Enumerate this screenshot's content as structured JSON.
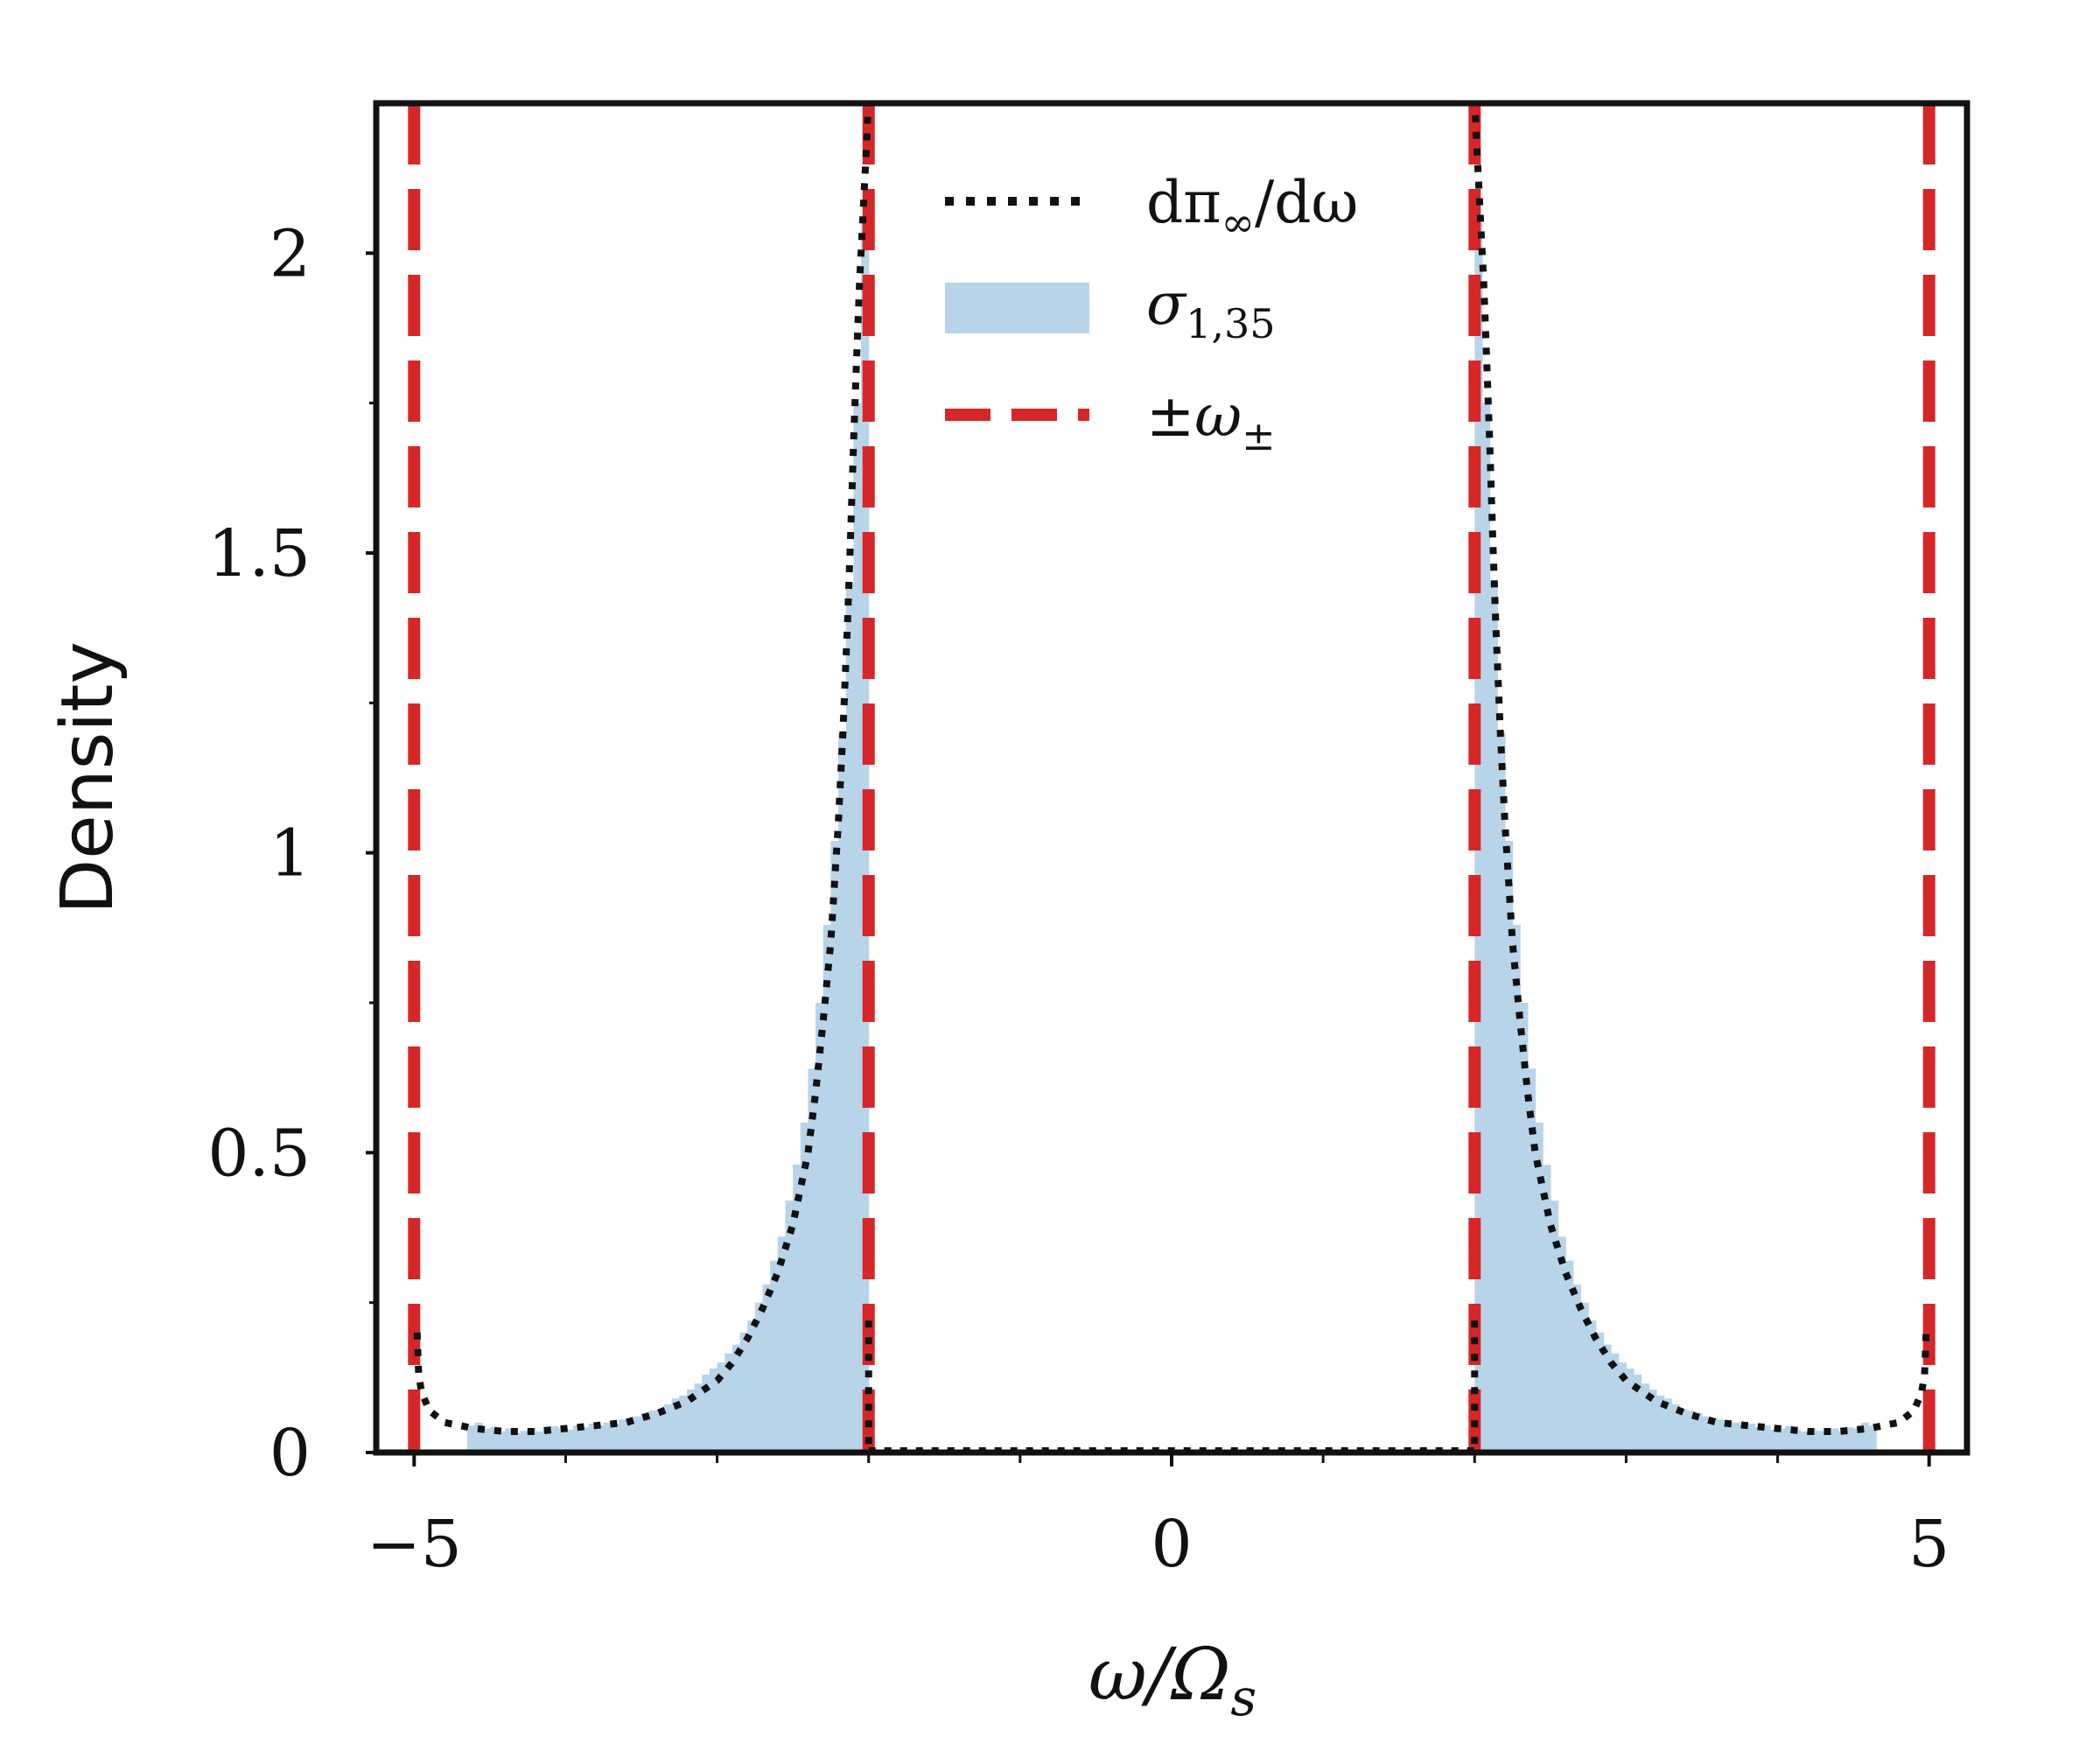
{
  "chart_data": {
    "type": "histogram-with-lines",
    "xlabel": "ω/Ω_s",
    "xlabel_main": "ω/Ω",
    "xlabel_sub": "s",
    "ylabel": "Density",
    "xlim": [
      -5.25,
      5.25
    ],
    "ylim": [
      0,
      2.25
    ],
    "xticks": [
      -5,
      0,
      5
    ],
    "xtick_labels": [
      "−5",
      "0",
      "5"
    ],
    "x_minor_ticks": [
      -4,
      -3,
      -2,
      -1,
      1,
      2,
      3,
      4
    ],
    "yticks": [
      0,
      0.5,
      1,
      1.5,
      2
    ],
    "ytick_labels": [
      "0",
      "0.5",
      "1",
      "1.5",
      "2"
    ],
    "y_minor_ticks": [
      0.25,
      0.75,
      1.25,
      1.75
    ],
    "omega_minus": 2.0,
    "omega_plus": 5.0,
    "colors": {
      "histogram": "#b8d4e9",
      "theory": "#111111",
      "vlines": "#d62728",
      "frame": "#111111"
    },
    "legend": {
      "placement": "top-center",
      "entries": [
        {
          "key": "theory",
          "label": "dπ∞/dω",
          "main": "dπ",
          "sub": "∞",
          "tail": "/dω",
          "style": "dotted"
        },
        {
          "key": "hist",
          "label": "σ1,35",
          "main": "σ",
          "sub": "1,35",
          "tail": "",
          "style": "fill"
        },
        {
          "key": "vlines",
          "label": "±ω±",
          "main": "±ω",
          "sub": "±",
          "tail": "",
          "style": "dashed"
        }
      ]
    },
    "vlines": [
      -5.0,
      -2.0,
      2.0,
      5.0
    ],
    "theory_curve": {
      "negative_x": [
        -4.98,
        -4.97,
        -4.95,
        -4.9,
        -4.8,
        -4.6,
        -4.4,
        -4.2,
        -4.0,
        -3.8,
        -3.6,
        -3.4,
        -3.2,
        -3.0,
        -2.9,
        -2.8,
        -2.7,
        -2.6,
        -2.5,
        -2.45,
        -2.4,
        -2.35,
        -2.3,
        -2.25,
        -2.2,
        -2.17,
        -2.14,
        -2.12,
        -2.1,
        -2.08,
        -2.06,
        -2.04,
        -2.03,
        -2.02,
        -2.01,
        -2.005
      ],
      "negative_y": [
        0.2,
        0.13,
        0.1,
        0.07,
        0.05,
        0.04,
        0.035,
        0.035,
        0.04,
        0.045,
        0.05,
        0.065,
        0.085,
        0.12,
        0.15,
        0.19,
        0.24,
        0.3,
        0.38,
        0.44,
        0.5,
        0.6,
        0.72,
        0.85,
        1.05,
        1.2,
        1.38,
        1.52,
        1.68,
        1.82,
        1.95,
        2.05,
        2.1,
        2.15,
        2.2,
        2.23
      ],
      "positive_x": [
        2.005,
        2.01,
        2.02,
        2.03,
        2.04,
        2.06,
        2.08,
        2.1,
        2.12,
        2.14,
        2.17,
        2.2,
        2.25,
        2.3,
        2.35,
        2.4,
        2.45,
        2.5,
        2.6,
        2.7,
        2.8,
        2.9,
        3.0,
        3.2,
        3.4,
        3.6,
        3.8,
        4.0,
        4.2,
        4.4,
        4.6,
        4.8,
        4.9,
        4.95,
        4.97,
        4.98
      ],
      "positive_y": [
        2.23,
        2.2,
        2.15,
        2.1,
        2.05,
        1.95,
        1.82,
        1.68,
        1.52,
        1.38,
        1.2,
        1.05,
        0.85,
        0.72,
        0.6,
        0.5,
        0.44,
        0.38,
        0.3,
        0.24,
        0.19,
        0.15,
        0.12,
        0.085,
        0.065,
        0.05,
        0.045,
        0.04,
        0.035,
        0.035,
        0.04,
        0.05,
        0.07,
        0.1,
        0.13,
        0.2
      ]
    },
    "histogram": {
      "bin_width": 0.05,
      "left_centers": [
        -4.625,
        -4.575,
        -4.525,
        -4.475,
        -4.425,
        -4.375,
        -4.325,
        -4.275,
        -4.225,
        -4.175,
        -4.125,
        -4.075,
        -4.025,
        -3.975,
        -3.925,
        -3.875,
        -3.825,
        -3.775,
        -3.725,
        -3.675,
        -3.625,
        -3.575,
        -3.525,
        -3.475,
        -3.425,
        -3.375,
        -3.325,
        -3.275,
        -3.225,
        -3.175,
        -3.125,
        -3.075,
        -3.025,
        -2.975,
        -2.925,
        -2.875,
        -2.825,
        -2.775,
        -2.725,
        -2.675,
        -2.625,
        -2.575,
        -2.525,
        -2.475,
        -2.425,
        -2.375,
        -2.325,
        -2.275,
        -2.225,
        -2.175,
        -2.125,
        -2.075,
        -2.025
      ],
      "left_values": [
        0.045,
        0.05,
        0.04,
        0.042,
        0.035,
        0.04,
        0.033,
        0.036,
        0.04,
        0.035,
        0.038,
        0.044,
        0.04,
        0.038,
        0.045,
        0.042,
        0.048,
        0.046,
        0.05,
        0.048,
        0.055,
        0.058,
        0.06,
        0.066,
        0.07,
        0.072,
        0.08,
        0.09,
        0.095,
        0.105,
        0.115,
        0.13,
        0.14,
        0.15,
        0.165,
        0.18,
        0.2,
        0.22,
        0.25,
        0.28,
        0.32,
        0.36,
        0.42,
        0.48,
        0.55,
        0.64,
        0.75,
        0.88,
        1.02,
        1.2,
        1.45,
        1.75,
        2.05
      ],
      "right_centers": [
        2.025,
        2.075,
        2.125,
        2.175,
        2.225,
        2.275,
        2.325,
        2.375,
        2.425,
        2.475,
        2.525,
        2.575,
        2.625,
        2.675,
        2.725,
        2.775,
        2.825,
        2.875,
        2.925,
        2.975,
        3.025,
        3.075,
        3.125,
        3.175,
        3.225,
        3.275,
        3.325,
        3.375,
        3.425,
        3.475,
        3.525,
        3.575,
        3.625,
        3.675,
        3.725,
        3.775,
        3.825,
        3.875,
        3.925,
        3.975,
        4.025,
        4.075,
        4.125,
        4.175,
        4.225,
        4.275,
        4.325,
        4.375,
        4.425,
        4.475,
        4.525,
        4.575,
        4.625
      ],
      "right_values": [
        2.05,
        1.75,
        1.45,
        1.2,
        1.02,
        0.88,
        0.75,
        0.64,
        0.55,
        0.48,
        0.42,
        0.36,
        0.32,
        0.28,
        0.25,
        0.22,
        0.2,
        0.18,
        0.165,
        0.15,
        0.14,
        0.13,
        0.115,
        0.105,
        0.095,
        0.09,
        0.08,
        0.072,
        0.07,
        0.066,
        0.06,
        0.058,
        0.055,
        0.048,
        0.05,
        0.046,
        0.048,
        0.042,
        0.045,
        0.038,
        0.04,
        0.044,
        0.038,
        0.035,
        0.04,
        0.036,
        0.033,
        0.04,
        0.035,
        0.042,
        0.04,
        0.05,
        0.045
      ]
    }
  }
}
